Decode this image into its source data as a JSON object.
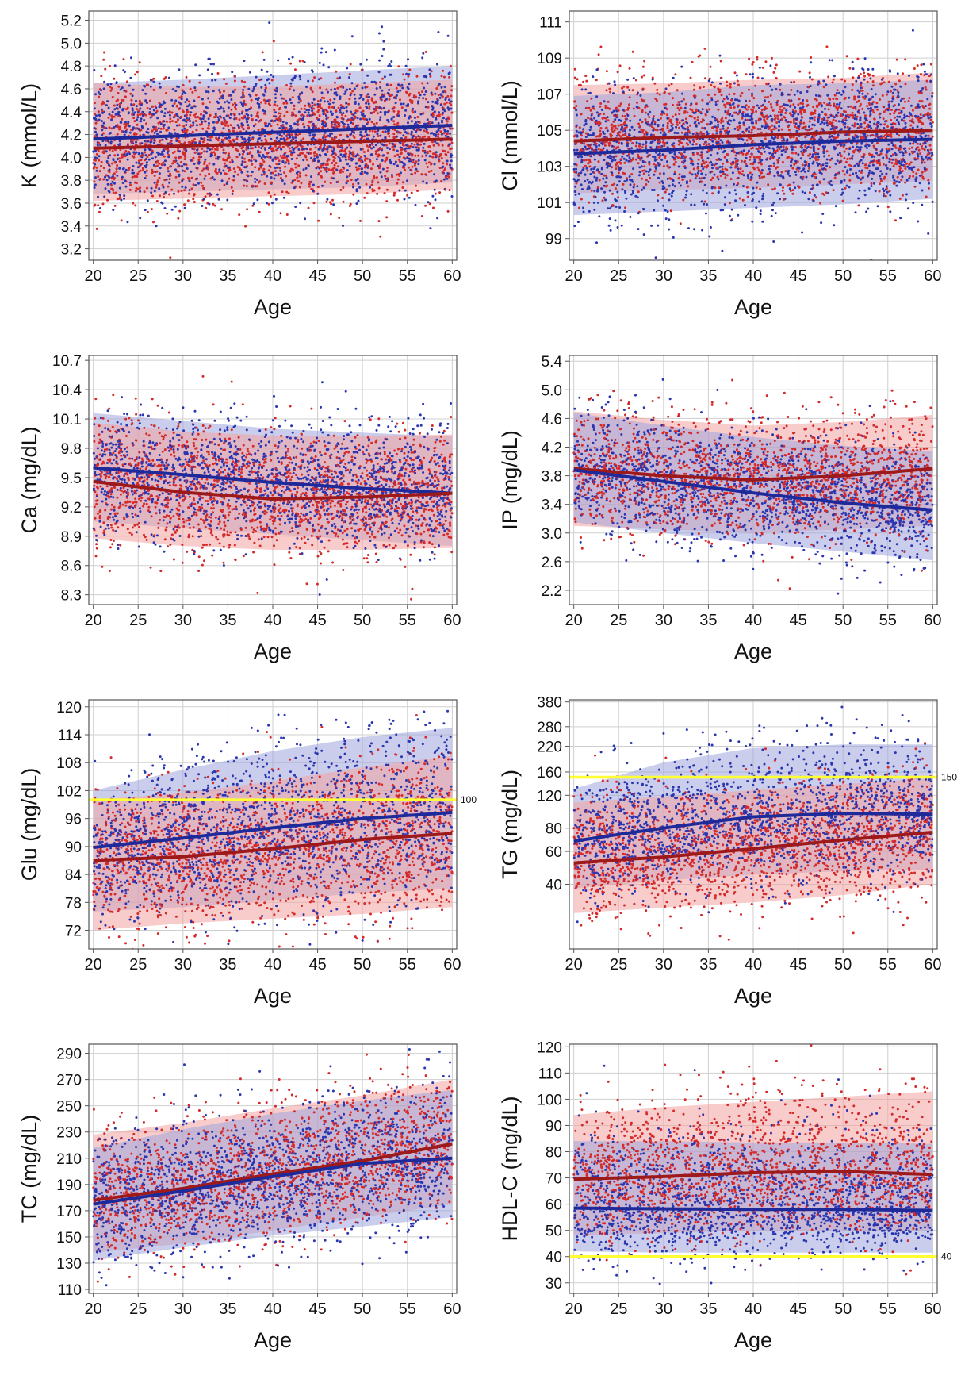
{
  "colors": {
    "female": "#d42a2a",
    "male": "#2a35b0",
    "female_line": "#9e1a1a",
    "male_line": "#1f2a9a",
    "female_band": "#f4a3a3",
    "male_band": "#9ea6dc",
    "overlap_band": "#8a5b8f",
    "reference_line": "#ffff33",
    "grid": "#cfcfcf",
    "frame": "#555555"
  },
  "chart_data": [
    {
      "id": "K",
      "type": "scatter",
      "xlabel": "Age",
      "ylabel": "K (mmol/L)",
      "xlim": [
        19.5,
        60.5
      ],
      "ylim": [
        3.1,
        5.28
      ],
      "xticks": [
        20,
        25,
        30,
        35,
        40,
        45,
        50,
        55,
        60
      ],
      "yticks": [
        3.2,
        3.4,
        3.6,
        3.8,
        4.0,
        4.2,
        4.4,
        4.6,
        4.8,
        5.0,
        5.2
      ],
      "ytick_labels": [
        "3.2",
        "3.4",
        "3.6",
        "3.8",
        "4.0",
        "4.2",
        "4.4",
        "4.6",
        "4.8",
        "5.0",
        "5.2"
      ],
      "scale": "linear",
      "grid": true,
      "series": [
        {
          "color_key": "male",
          "x": [
            20,
            30,
            40,
            50,
            60
          ],
          "y": [
            4.16,
            4.19,
            4.22,
            4.25,
            4.28
          ],
          "lower": [
            3.68,
            3.7,
            3.72,
            3.74,
            3.78
          ],
          "upper": [
            4.65,
            4.68,
            4.72,
            4.76,
            4.8
          ]
        },
        {
          "color_key": "female",
          "x": [
            20,
            30,
            40,
            50,
            60
          ],
          "y": [
            4.08,
            4.1,
            4.12,
            4.14,
            4.16
          ],
          "lower": [
            3.62,
            3.64,
            3.66,
            3.68,
            3.72
          ],
          "upper": [
            4.65,
            4.62,
            4.62,
            4.65,
            4.68
          ]
        }
      ],
      "reference": null,
      "points_per_series": 1600
    },
    {
      "id": "Cl",
      "type": "scatter",
      "xlabel": "Age",
      "ylabel": "Cl (mmol/L)",
      "xlim": [
        19.5,
        60.5
      ],
      "ylim": [
        97.8,
        111.6
      ],
      "xticks": [
        20,
        25,
        30,
        35,
        40,
        45,
        50,
        55,
        60
      ],
      "yticks": [
        99,
        101,
        103,
        105,
        107,
        109,
        111
      ],
      "ytick_labels": [
        "99",
        "101",
        "103",
        "105",
        "107",
        "109",
        "111"
      ],
      "scale": "linear",
      "grid": true,
      "series": [
        {
          "color_key": "female",
          "x": [
            20,
            30,
            40,
            50,
            60
          ],
          "y": [
            104.4,
            104.6,
            104.7,
            104.9,
            105.0
          ],
          "lower": [
            101.5,
            101.7,
            101.8,
            102.0,
            102.2
          ],
          "upper": [
            107.5,
            107.6,
            107.8,
            107.9,
            108.2
          ]
        },
        {
          "color_key": "male",
          "x": [
            20,
            30,
            40,
            50,
            60
          ],
          "y": [
            103.7,
            103.9,
            104.2,
            104.4,
            104.5
          ],
          "lower": [
            100.3,
            100.5,
            100.7,
            100.9,
            101.2
          ],
          "upper": [
            106.9,
            107.1,
            107.5,
            107.6,
            107.8
          ]
        }
      ],
      "reference": null,
      "points_per_series": 1600
    },
    {
      "id": "Ca",
      "type": "scatter",
      "xlabel": "Age",
      "ylabel": "Ca (mg/dL)",
      "xlim": [
        19.5,
        60.5
      ],
      "ylim": [
        8.2,
        10.75
      ],
      "xticks": [
        20,
        25,
        30,
        35,
        40,
        45,
        50,
        55,
        60
      ],
      "yticks": [
        8.3,
        8.6,
        8.9,
        9.2,
        9.5,
        9.8,
        10.1,
        10.4,
        10.7
      ],
      "ytick_labels": [
        "8.3",
        "8.6",
        "8.9",
        "9.2",
        "9.5",
        "9.8",
        "10.1",
        "10.4",
        "10.7"
      ],
      "scale": "linear",
      "grid": true,
      "series": [
        {
          "color_key": "male",
          "x": [
            20,
            30,
            40,
            50,
            60
          ],
          "y": [
            9.6,
            9.53,
            9.45,
            9.39,
            9.34
          ],
          "lower": [
            9.05,
            8.98,
            8.92,
            8.86,
            8.8
          ],
          "upper": [
            10.16,
            10.08,
            10.0,
            9.96,
            9.92
          ]
        },
        {
          "color_key": "female",
          "x": [
            20,
            30,
            40,
            50,
            60
          ],
          "y": [
            9.46,
            9.35,
            9.28,
            9.3,
            9.34
          ],
          "lower": [
            8.88,
            8.8,
            8.76,
            8.76,
            8.78
          ],
          "upper": [
            10.06,
            9.97,
            9.93,
            9.93,
            9.94
          ]
        }
      ],
      "reference": null,
      "points_per_series": 1600
    },
    {
      "id": "IP",
      "type": "scatter",
      "xlabel": "Age",
      "ylabel": "IP (mg/dL)",
      "xlim": [
        19.5,
        60.5
      ],
      "ylim": [
        2.0,
        5.48
      ],
      "xticks": [
        20,
        25,
        30,
        35,
        40,
        45,
        50,
        55,
        60
      ],
      "yticks": [
        2.2,
        2.6,
        3.0,
        3.4,
        3.8,
        4.2,
        4.6,
        5.0,
        5.4
      ],
      "ytick_labels": [
        "2.2",
        "2.6",
        "3.0",
        "3.4",
        "3.8",
        "4.2",
        "4.6",
        "5.0",
        "5.4"
      ],
      "scale": "linear",
      "grid": true,
      "series": [
        {
          "color_key": "female",
          "x": [
            20,
            30,
            40,
            50,
            60
          ],
          "y": [
            3.9,
            3.8,
            3.74,
            3.8,
            3.9
          ],
          "lower": [
            3.1,
            3.05,
            3.0,
            3.05,
            3.1
          ],
          "upper": [
            4.7,
            4.58,
            4.5,
            4.55,
            4.65
          ]
        },
        {
          "color_key": "male",
          "x": [
            20,
            30,
            40,
            50,
            60
          ],
          "y": [
            3.88,
            3.72,
            3.56,
            3.42,
            3.32
          ],
          "lower": [
            3.15,
            3.0,
            2.86,
            2.74,
            2.62
          ],
          "upper": [
            4.68,
            4.5,
            4.34,
            4.22,
            4.14
          ]
        }
      ],
      "reference": null,
      "points_per_series": 1600
    },
    {
      "id": "Glu",
      "type": "scatter",
      "xlabel": "Age",
      "ylabel": "Glu (mg/dL)",
      "xlim": [
        19.5,
        60.5
      ],
      "ylim": [
        68,
        121.5
      ],
      "xticks": [
        20,
        25,
        30,
        35,
        40,
        45,
        50,
        55,
        60
      ],
      "yticks": [
        72,
        78,
        84,
        90,
        96,
        102,
        108,
        114,
        120
      ],
      "ytick_labels": [
        "72",
        "78",
        "84",
        "90",
        "96",
        "102",
        "108",
        "114",
        "120"
      ],
      "scale": "linear",
      "grid": true,
      "series": [
        {
          "color_key": "male",
          "x": [
            20,
            30,
            40,
            50,
            60
          ],
          "y": [
            89.8,
            91.8,
            94.0,
            96.0,
            97.3
          ],
          "lower": [
            76.0,
            77.0,
            78.5,
            80.0,
            81.0
          ],
          "upper": [
            102.0,
            106.5,
            110.5,
            113.5,
            115.5
          ]
        },
        {
          "color_key": "female",
          "x": [
            20,
            30,
            40,
            50,
            60
          ],
          "y": [
            87.0,
            87.8,
            89.5,
            91.5,
            92.8
          ],
          "lower": [
            72.0,
            73.5,
            74.5,
            75.5,
            77.0
          ],
          "upper": [
            100.0,
            101.5,
            104.0,
            107.0,
            109.5
          ]
        }
      ],
      "reference": {
        "y": 100,
        "label": "100"
      },
      "points_per_series": 1600
    },
    {
      "id": "TG",
      "type": "scatter",
      "xlabel": "Age",
      "ylabel": "TG (mg/dL)",
      "xlim": [
        19.5,
        60.5
      ],
      "ylim": [
        18,
        390
      ],
      "xticks": [
        20,
        25,
        30,
        35,
        40,
        45,
        50,
        55,
        60
      ],
      "yticks": [
        40,
        60,
        80,
        120,
        160,
        220,
        280,
        380
      ],
      "ytick_labels": [
        "40",
        "60",
        "80",
        "120",
        "160",
        "220",
        "280",
        "380"
      ],
      "scale": "log",
      "grid": true,
      "series": [
        {
          "color_key": "male",
          "x": [
            20,
            30,
            40,
            50,
            60
          ],
          "y": [
            68,
            80,
            92,
            96,
            95
          ],
          "lower": [
            38,
            42,
            45,
            47,
            48
          ],
          "upper": [
            130,
            180,
            215,
            225,
            225
          ]
        },
        {
          "color_key": "female",
          "x": [
            20,
            30,
            40,
            50,
            60
          ],
          "y": [
            52,
            56,
            62,
            69,
            76
          ],
          "lower": [
            28,
            30,
            32,
            35,
            40
          ],
          "upper": [
            110,
            118,
            128,
            138,
            148
          ]
        }
      ],
      "reference": {
        "y": 150,
        "label": "150"
      },
      "points_per_series": 1600
    },
    {
      "id": "TC",
      "type": "scatter",
      "xlabel": "Age",
      "ylabel": "TC (mg/dL)",
      "xlim": [
        19.5,
        60.5
      ],
      "ylim": [
        107,
        297
      ],
      "xticks": [
        20,
        25,
        30,
        35,
        40,
        45,
        50,
        55,
        60
      ],
      "yticks": [
        110,
        130,
        150,
        170,
        190,
        210,
        230,
        250,
        270,
        290
      ],
      "ytick_labels": [
        "110",
        "130",
        "150",
        "170",
        "190",
        "210",
        "230",
        "250",
        "270",
        "290"
      ],
      "scale": "linear",
      "grid": true,
      "series": [
        {
          "color_key": "female",
          "x": [
            20,
            30,
            40,
            50,
            60
          ],
          "y": [
            178,
            187,
            198,
            208,
            221
          ],
          "lower": [
            138,
            145,
            155,
            165,
            175
          ],
          "upper": [
            228,
            237,
            248,
            258,
            270
          ]
        },
        {
          "color_key": "male",
          "x": [
            20,
            30,
            40,
            50,
            60
          ],
          "y": [
            175,
            185,
            196,
            206,
            210
          ],
          "lower": [
            132,
            142,
            151,
            158,
            165
          ],
          "upper": [
            218,
            232,
            244,
            254,
            262
          ]
        }
      ],
      "reference": null,
      "points_per_series": 1600
    },
    {
      "id": "HDL-C",
      "type": "scatter",
      "xlabel": "Age",
      "ylabel": "HDL-C (mg/dL)",
      "xlim": [
        19.5,
        60.5
      ],
      "ylim": [
        26,
        121
      ],
      "xticks": [
        20,
        25,
        30,
        35,
        40,
        45,
        50,
        55,
        60
      ],
      "yticks": [
        30,
        40,
        50,
        60,
        70,
        80,
        90,
        100,
        110,
        120
      ],
      "ytick_labels": [
        "30",
        "40",
        "50",
        "60",
        "70",
        "80",
        "90",
        "100",
        "110",
        "120"
      ],
      "scale": "linear",
      "grid": true,
      "series": [
        {
          "color_key": "female",
          "x": [
            20,
            30,
            40,
            50,
            60
          ],
          "y": [
            69.5,
            70.5,
            72.0,
            72.5,
            71.3
          ],
          "lower": [
            48,
            49,
            50,
            50,
            50
          ],
          "upper": [
            94,
            97,
            99,
            101,
            103
          ]
        },
        {
          "color_key": "male",
          "x": [
            20,
            30,
            40,
            50,
            60
          ],
          "y": [
            58.5,
            58.2,
            58.0,
            58.0,
            57.6
          ],
          "lower": [
            42,
            41.5,
            41.5,
            41.5,
            41.5
          ],
          "upper": [
            84,
            84,
            83.5,
            83.5,
            83
          ]
        }
      ],
      "reference": {
        "y": 40,
        "label": "40"
      },
      "points_per_series": 1600
    }
  ]
}
